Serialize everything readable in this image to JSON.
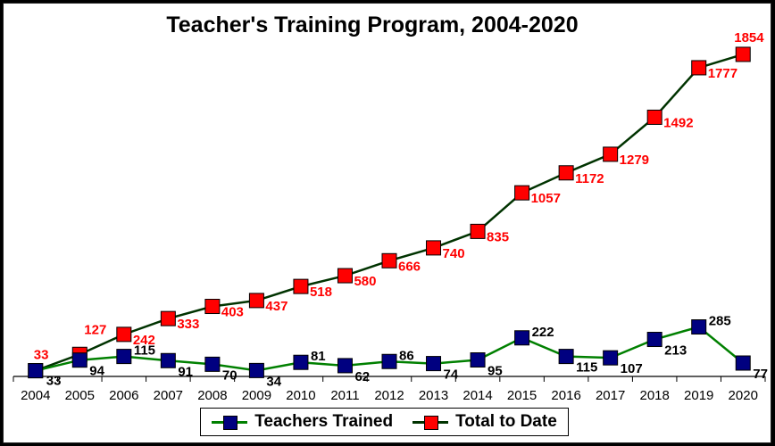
{
  "chart_data": {
    "type": "line",
    "title": "Teacher's Training Program, 2004-2020",
    "x": [
      "2004",
      "2005",
      "2006",
      "2007",
      "2008",
      "2009",
      "2010",
      "2011",
      "2012",
      "2013",
      "2014",
      "2015",
      "2016",
      "2017",
      "2018",
      "2019",
      "2020"
    ],
    "ylim": [
      0,
      1900
    ],
    "grid": false,
    "legend_position": "bottom",
    "series": [
      {
        "name": "Teachers Trained",
        "values": [
          33,
          94,
          115,
          91,
          70,
          34,
          81,
          62,
          86,
          74,
          95,
          222,
          115,
          107,
          213,
          285,
          77
        ],
        "line_color": "#008000",
        "marker_color": "#000080"
      },
      {
        "name": "Total to Date",
        "values": [
          33,
          127,
          242,
          333,
          403,
          437,
          518,
          580,
          666,
          740,
          835,
          1057,
          1172,
          1279,
          1492,
          1777,
          1854
        ],
        "line_color": "#003300",
        "marker_color": "#FF0000",
        "label_color": "#FF0000"
      }
    ]
  }
}
